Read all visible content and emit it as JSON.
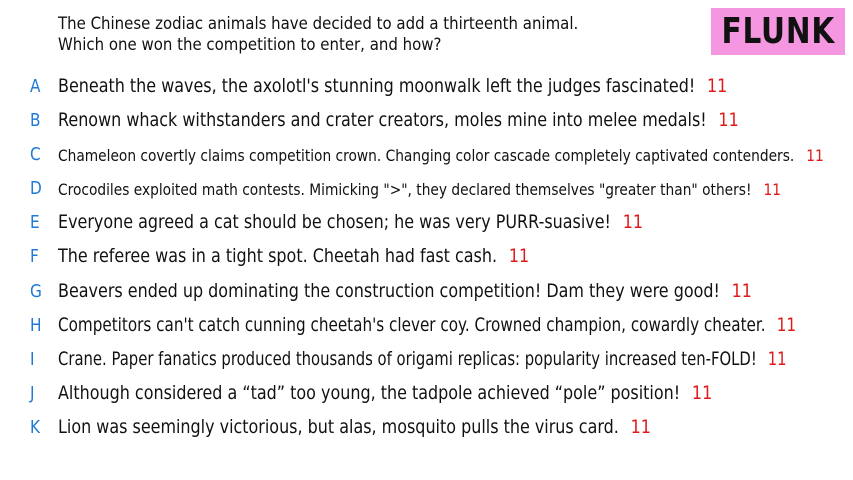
{
  "question": {
    "line1": "The Chinese zodiac animals have decided to add a thirteenth animal.",
    "line2": "Which one won the competition to enter, and how?"
  },
  "logo": {
    "text": "FLUNK",
    "background": "#f596e0"
  },
  "colors": {
    "letter": "#1e7ad6",
    "score": "#e01818",
    "text": "#111111"
  },
  "answers": [
    {
      "letter": "A",
      "text": "Beneath the waves, the axolotl's stunning moonwalk left the judges fascinated!",
      "score": "11"
    },
    {
      "letter": "B",
      "text": "Renown whack withstanders and crater creators, moles mine into melee medals!",
      "score": "11"
    },
    {
      "letter": "C",
      "text": "Chameleon covertly claims competition crown. Changing color cascade completely captivated contenders.",
      "score": "11"
    },
    {
      "letter": "D",
      "text": "Crocodiles exploited math contests. Mimicking \">\", they declared themselves \"greater than\" others!",
      "score": "11"
    },
    {
      "letter": "E",
      "text": "Everyone agreed a cat should be chosen; he was very PURR-suasive!",
      "score": "11"
    },
    {
      "letter": "F",
      "text": "The referee was in a tight spot. Cheetah had fast cash.",
      "score": "11"
    },
    {
      "letter": "G",
      "text": "Beavers ended up dominating the construction competition! Dam they were good!",
      "score": "11"
    },
    {
      "letter": "H",
      "text": "Competitors can't catch cunning cheetah's clever coy. Crowned champion, cowardly cheater.",
      "score": "11"
    },
    {
      "letter": "I",
      "text": "Crane. Paper fanatics produced thousands of origami replicas: popularity increased ten-FOLD!",
      "score": "11"
    },
    {
      "letter": "J",
      "text": "Although considered a “tad” too young, the tadpole achieved “pole” position!",
      "score": "11"
    },
    {
      "letter": "K",
      "text": "Lion was seemingly victorious, but alas, mosquito pulls the virus card.",
      "score": "11"
    }
  ]
}
